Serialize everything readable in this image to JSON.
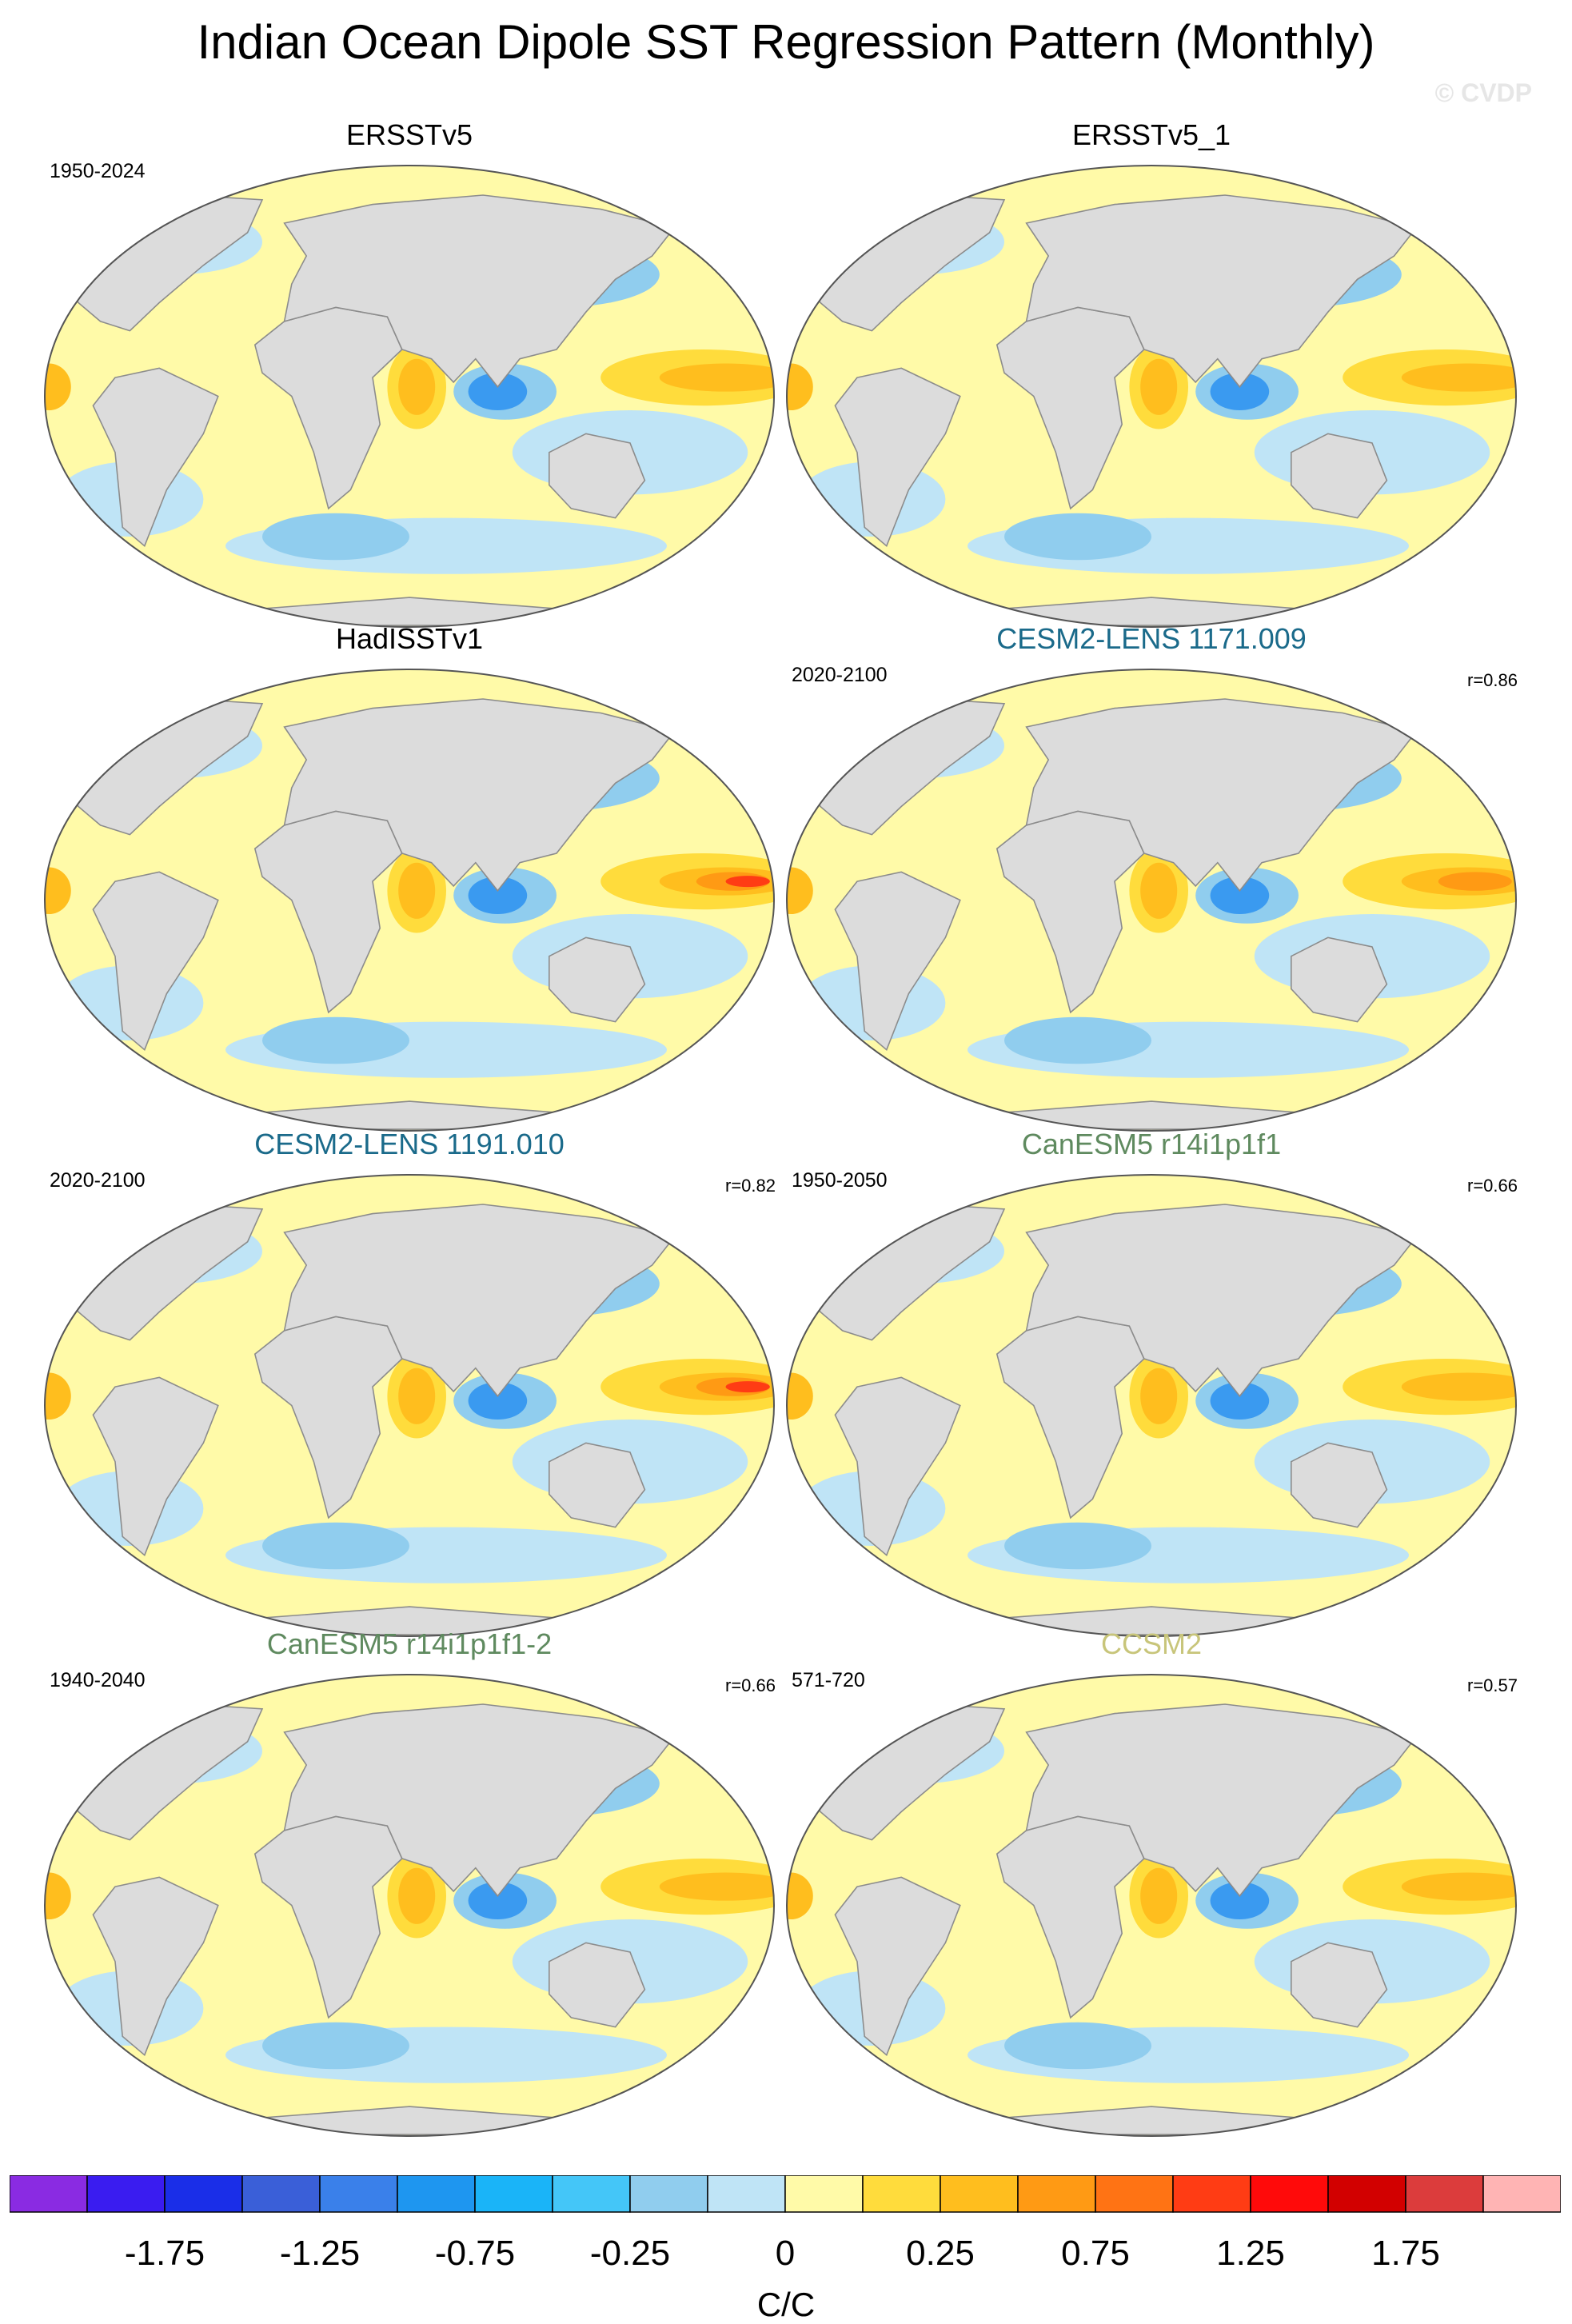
{
  "title": "Indian Ocean Dipole SST Regression Pattern (Monthly)",
  "watermark": "© CVDP",
  "panels": [
    {
      "title": "ERSSTv5",
      "title_color": "#000000",
      "period": "1950-2024",
      "r": ""
    },
    {
      "title": "ERSSTv5_1",
      "title_color": "#000000",
      "period": "",
      "r": ""
    },
    {
      "title": "HadISSTv1",
      "title_color": "#000000",
      "period": "",
      "r": ""
    },
    {
      "title": "CESM2-LENS 1171.009",
      "title_color": "#1a6a8a",
      "period": "2020-2100",
      "r": "r=0.86"
    },
    {
      "title": "CESM2-LENS 1191.010",
      "title_color": "#1a6a8a",
      "period": "2020-2100",
      "r": "r=0.82"
    },
    {
      "title": "CanESM5 r14i1p1f1",
      "title_color": "#5f8a5f",
      "period": "1950-2050",
      "r": "r=0.66"
    },
    {
      "title": "CanESM5 r14i1p1f1-2",
      "title_color": "#5f8a5f",
      "period": "1940-2040",
      "r": "r=0.66"
    },
    {
      "title": "CCSM2",
      "title_color": "#c8c57a",
      "period": "571-720",
      "r": "r=0.57"
    }
  ],
  "colorbar": {
    "unit": "C/C",
    "colors": [
      "#8a2be2",
      "#3a1cf0",
      "#1a2ee8",
      "#3a5fd8",
      "#3a80ea",
      "#1e96f0",
      "#1ab4f8",
      "#44c6f8",
      "#90cdee",
      "#bfe4f6",
      "#fffaa8",
      "#ffdc3c",
      "#ffbe1e",
      "#ff9a14",
      "#ff7314",
      "#ff3c14",
      "#ff0a0a",
      "#d20000",
      "#dc3c3c",
      "#ffb4b4"
    ],
    "tick_labels": [
      "-1.75",
      "-1.25",
      "-0.75",
      "-0.25",
      "0",
      "0.25",
      "0.75",
      "1.25",
      "1.75"
    ]
  },
  "shading": {
    "land": "#dcdcdc",
    "ocean_base": "#fffaa8",
    "cool_light": "#bfe4f6",
    "cool_mid": "#90cdee",
    "cool_strong": "#3a9af0",
    "warm_mid": "#ffdc3c",
    "warm_strong": "#ffbe1e",
    "warm_hot": "#ff9a14",
    "warm_peak": "#ff3c14"
  }
}
